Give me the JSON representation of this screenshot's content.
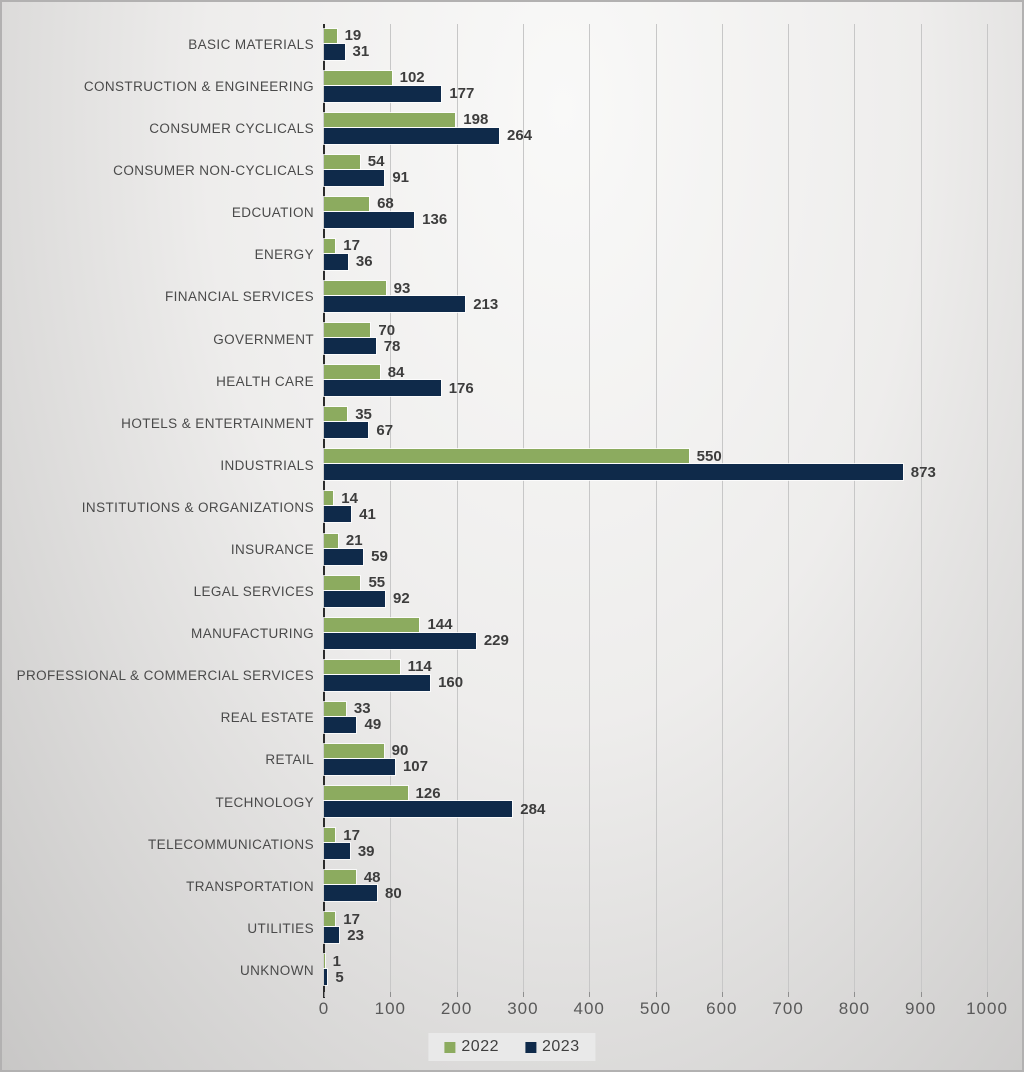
{
  "chart_data": {
    "type": "bar",
    "orientation": "horizontal",
    "title": "",
    "xlabel": "",
    "ylabel": "",
    "categories": [
      "BASIC MATERIALS",
      "CONSTRUCTION & ENGINEERING",
      "CONSUMER CYCLICALS",
      "CONSUMER NON-CYCLICALS",
      "EDCUATION",
      "ENERGY",
      "FINANCIAL SERVICES",
      "GOVERNMENT",
      "HEALTH CARE",
      "HOTELS & ENTERTAINMENT",
      "INDUSTRIALS",
      "INSTITUTIONS & ORGANIZATIONS",
      "INSURANCE",
      "LEGAL SERVICES",
      "MANUFACTURING",
      "PROFESSIONAL & COMMERCIAL SERVICES",
      "REAL ESTATE",
      "RETAIL",
      "TECHNOLOGY",
      "TELECOMMUNICATIONS",
      "TRANSPORTATION",
      "UTILITIES",
      "UNKNOWN"
    ],
    "series": [
      {
        "name": "2022",
        "color": "#8CAB5F",
        "values": [
          19,
          102,
          198,
          54,
          68,
          17,
          93,
          70,
          84,
          35,
          550,
          14,
          21,
          55,
          144,
          114,
          33,
          90,
          126,
          17,
          48,
          17,
          1
        ]
      },
      {
        "name": "2023",
        "color": "#0F2A4A",
        "values": [
          31,
          177,
          264,
          91,
          136,
          36,
          213,
          78,
          176,
          67,
          873,
          41,
          59,
          92,
          229,
          160,
          49,
          107,
          284,
          39,
          80,
          23,
          5
        ]
      }
    ],
    "xlim": [
      0,
      1000
    ],
    "xticks": [
      0,
      100,
      200,
      300,
      400,
      500,
      600,
      700,
      800,
      900,
      1000
    ],
    "grid": "vertical",
    "data_labels": true,
    "legend_position": "bottom"
  },
  "colors": {
    "axis_line": "#2b2b2b",
    "gridline": "#c7c7c7",
    "tick": "#8f8f8f",
    "tick_label": "#595959",
    "category_label": "#4a4a4a",
    "value_label": "#3d3d3d",
    "legend_background": "#e9e9e9",
    "background_light": "#f9f9f8",
    "background_dark": "#c8c7c6",
    "series_2022": "#8CAB5F",
    "series_2023": "#0F2A4A"
  }
}
